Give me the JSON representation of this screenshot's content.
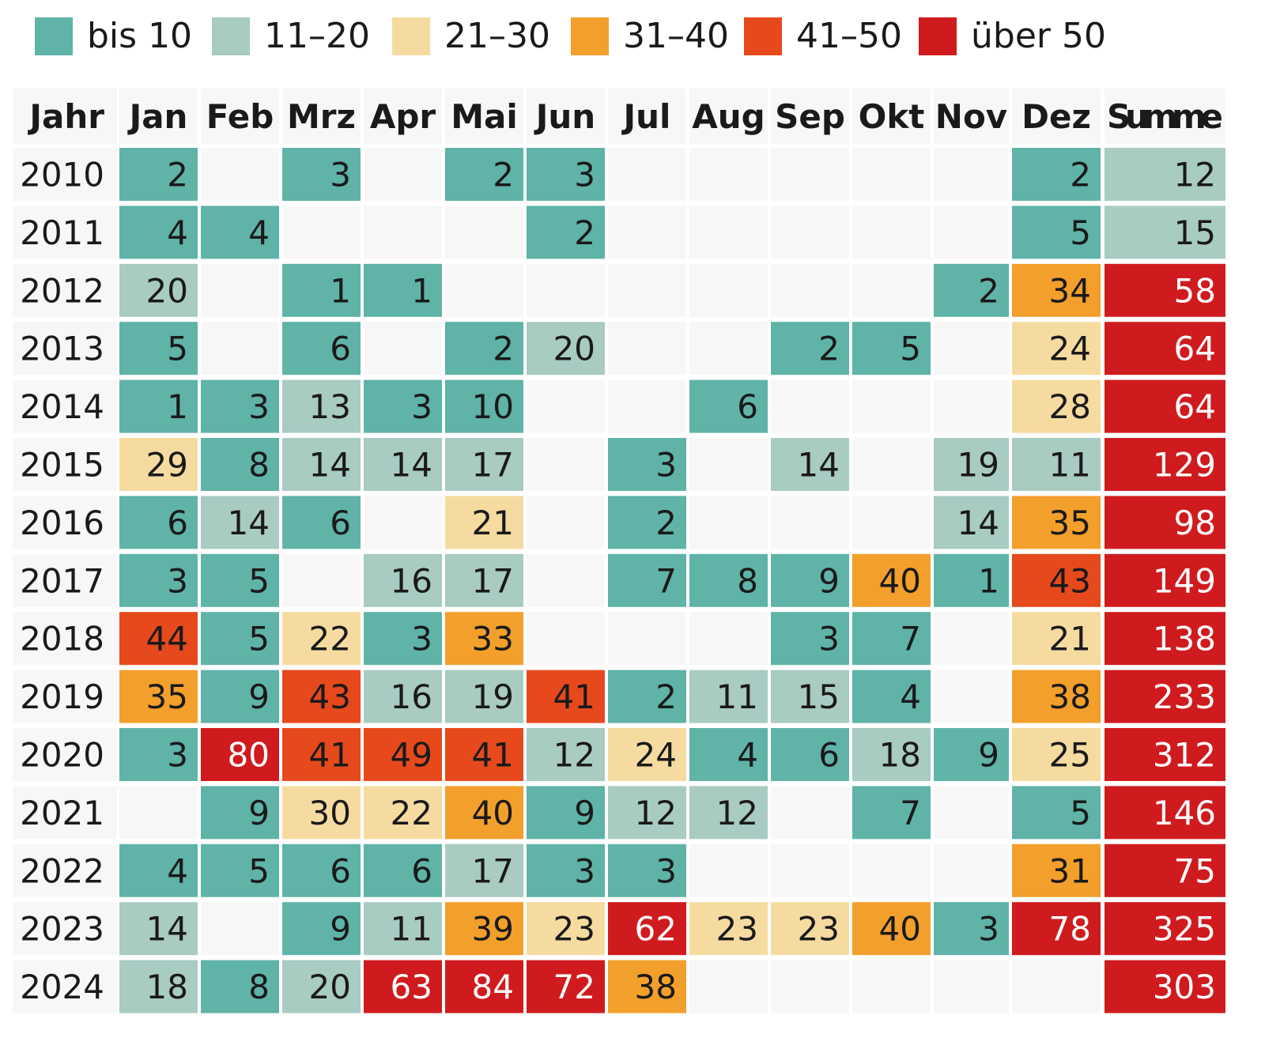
{
  "chart_data": {
    "type": "heatmap",
    "legend": [
      {
        "label": "bis 10",
        "color": "#5fb3a7"
      },
      {
        "label": "11–20",
        "color": "#a8cbc2"
      },
      {
        "label": "21–30",
        "color": "#f6dba0"
      },
      {
        "label": "31–40",
        "color": "#f39f2c"
      },
      {
        "label": "41–50",
        "color": "#e6491c"
      },
      {
        "label": "über 50",
        "color": "#cf1b1e"
      }
    ],
    "row_header": "Jahr",
    "columns": [
      "Jan",
      "Feb",
      "Mrz",
      "Apr",
      "Mai",
      "Jun",
      "Jul",
      "Aug",
      "Sep",
      "Okt",
      "Nov",
      "Dez",
      "Summe"
    ],
    "rows": [
      {
        "year": "2010",
        "values": [
          2,
          null,
          3,
          null,
          2,
          3,
          null,
          null,
          null,
          null,
          null,
          2,
          12
        ]
      },
      {
        "year": "2011",
        "values": [
          4,
          4,
          null,
          null,
          null,
          2,
          null,
          null,
          null,
          null,
          null,
          5,
          15
        ]
      },
      {
        "year": "2012",
        "values": [
          20,
          null,
          1,
          1,
          null,
          null,
          null,
          null,
          null,
          null,
          2,
          34,
          58
        ]
      },
      {
        "year": "2013",
        "values": [
          5,
          null,
          6,
          null,
          2,
          20,
          null,
          null,
          2,
          5,
          null,
          24,
          64
        ]
      },
      {
        "year": "2014",
        "values": [
          1,
          3,
          13,
          3,
          10,
          null,
          null,
          6,
          null,
          null,
          null,
          28,
          64
        ]
      },
      {
        "year": "2015",
        "values": [
          29,
          8,
          14,
          14,
          17,
          null,
          3,
          null,
          14,
          null,
          19,
          11,
          129
        ]
      },
      {
        "year": "2016",
        "values": [
          6,
          14,
          6,
          null,
          21,
          null,
          2,
          null,
          null,
          null,
          14,
          35,
          98
        ]
      },
      {
        "year": "2017",
        "values": [
          3,
          5,
          null,
          16,
          17,
          null,
          7,
          8,
          9,
          40,
          1,
          43,
          149
        ]
      },
      {
        "year": "2018",
        "values": [
          44,
          5,
          22,
          3,
          33,
          null,
          null,
          null,
          3,
          7,
          null,
          21,
          138
        ]
      },
      {
        "year": "2019",
        "values": [
          35,
          9,
          43,
          16,
          19,
          41,
          2,
          11,
          15,
          4,
          null,
          38,
          233
        ]
      },
      {
        "year": "2020",
        "values": [
          3,
          80,
          41,
          49,
          41,
          12,
          24,
          4,
          6,
          18,
          9,
          25,
          312
        ]
      },
      {
        "year": "2021",
        "values": [
          null,
          9,
          30,
          22,
          40,
          9,
          12,
          12,
          null,
          7,
          null,
          5,
          146
        ]
      },
      {
        "year": "2022",
        "values": [
          4,
          5,
          6,
          6,
          17,
          3,
          3,
          null,
          null,
          null,
          null,
          31,
          75
        ]
      },
      {
        "year": "2023",
        "values": [
          14,
          null,
          9,
          11,
          39,
          23,
          62,
          23,
          23,
          40,
          3,
          78,
          325
        ]
      },
      {
        "year": "2024",
        "values": [
          18,
          8,
          20,
          63,
          84,
          72,
          38,
          null,
          null,
          null,
          null,
          null,
          303
        ]
      }
    ],
    "empty_cell_color": "#f7f7f7",
    "text_color": "#1a1a1a",
    "text_color_on_red": "#ffffff"
  }
}
